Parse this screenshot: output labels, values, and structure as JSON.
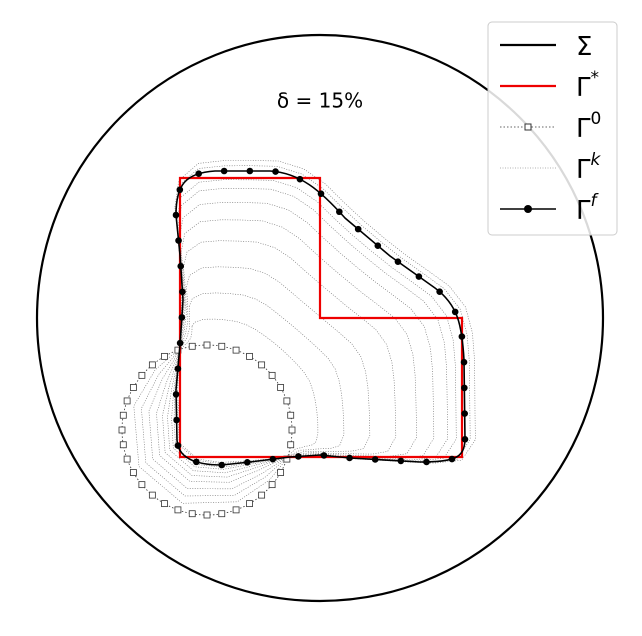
{
  "annotation": "δ = 15%",
  "legend": {
    "items": [
      {
        "base": "Σ",
        "sup": ""
      },
      {
        "base": "Γ",
        "sup": "*"
      },
      {
        "base": "Γ",
        "sup": "0"
      },
      {
        "base": "Γ",
        "sup": "k"
      },
      {
        "base": "Γ",
        "sup": "f"
      }
    ]
  }
}
